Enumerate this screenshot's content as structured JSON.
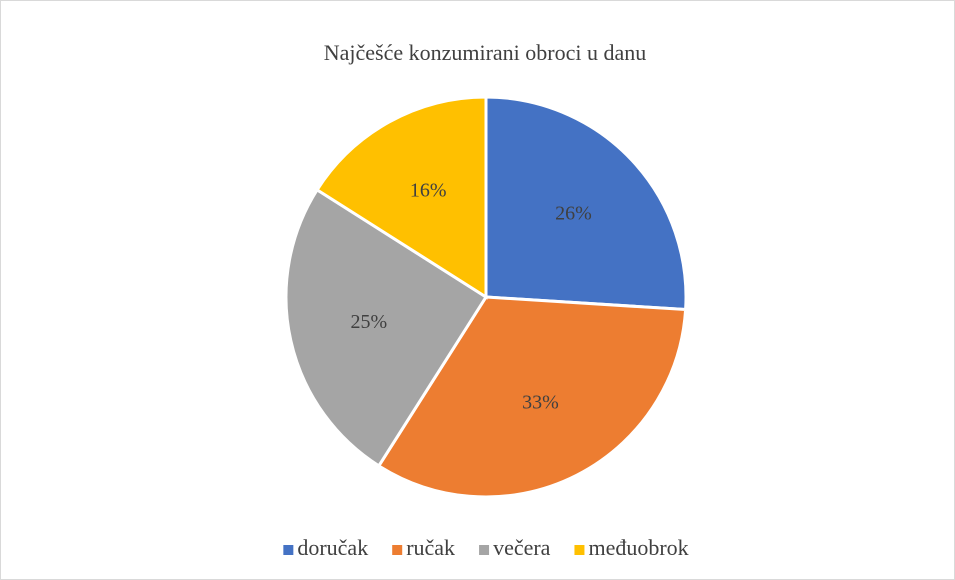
{
  "chart_data": {
    "type": "pie",
    "title": "Najčešće konzumirani obroci u danu",
    "categories": [
      "doručak",
      "ručak",
      "večera",
      "međuobrok"
    ],
    "values": [
      26,
      33,
      25,
      16
    ],
    "value_labels": [
      "26%",
      "33%",
      "25%",
      "16%"
    ],
    "colors": [
      "#4472c4",
      "#ed7d31",
      "#a5a5a5",
      "#ffc000"
    ],
    "legend": "bottom"
  }
}
